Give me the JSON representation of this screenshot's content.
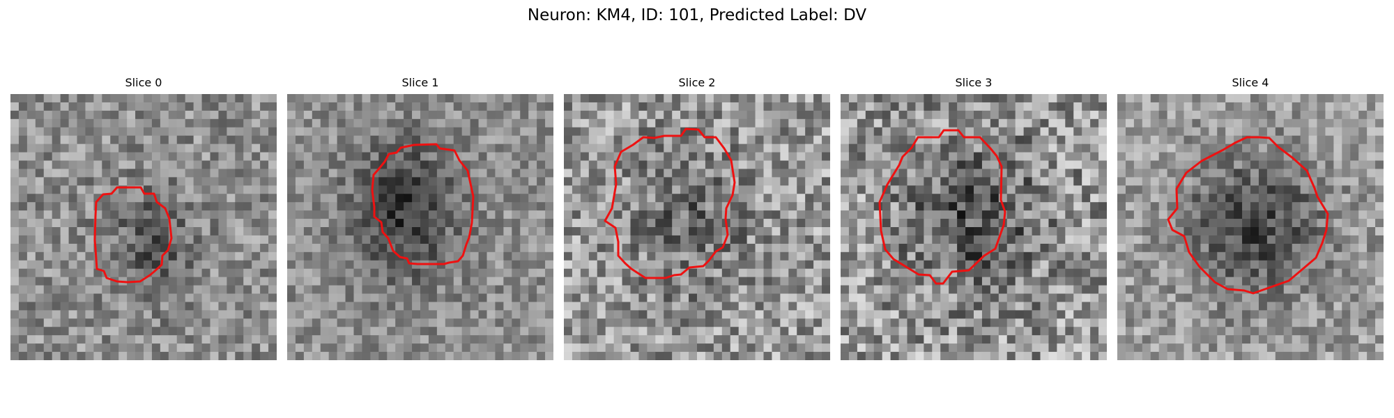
{
  "figure": {
    "title": "Neuron: KM4, ID: 101, Predicted Label: DV"
  },
  "style": {
    "contour_color": "#ee1111"
  },
  "slices": [
    {
      "label": "Slice 0",
      "contour_color": "#ee1111"
    },
    {
      "label": "Slice 1",
      "contour_color": "#ee1111"
    },
    {
      "label": "Slice 2",
      "contour_color": "#ee1111"
    },
    {
      "label": "Slice 3",
      "contour_color": "#ee1111"
    },
    {
      "label": "Slice 4",
      "contour_color": "#ee1111"
    }
  ]
}
